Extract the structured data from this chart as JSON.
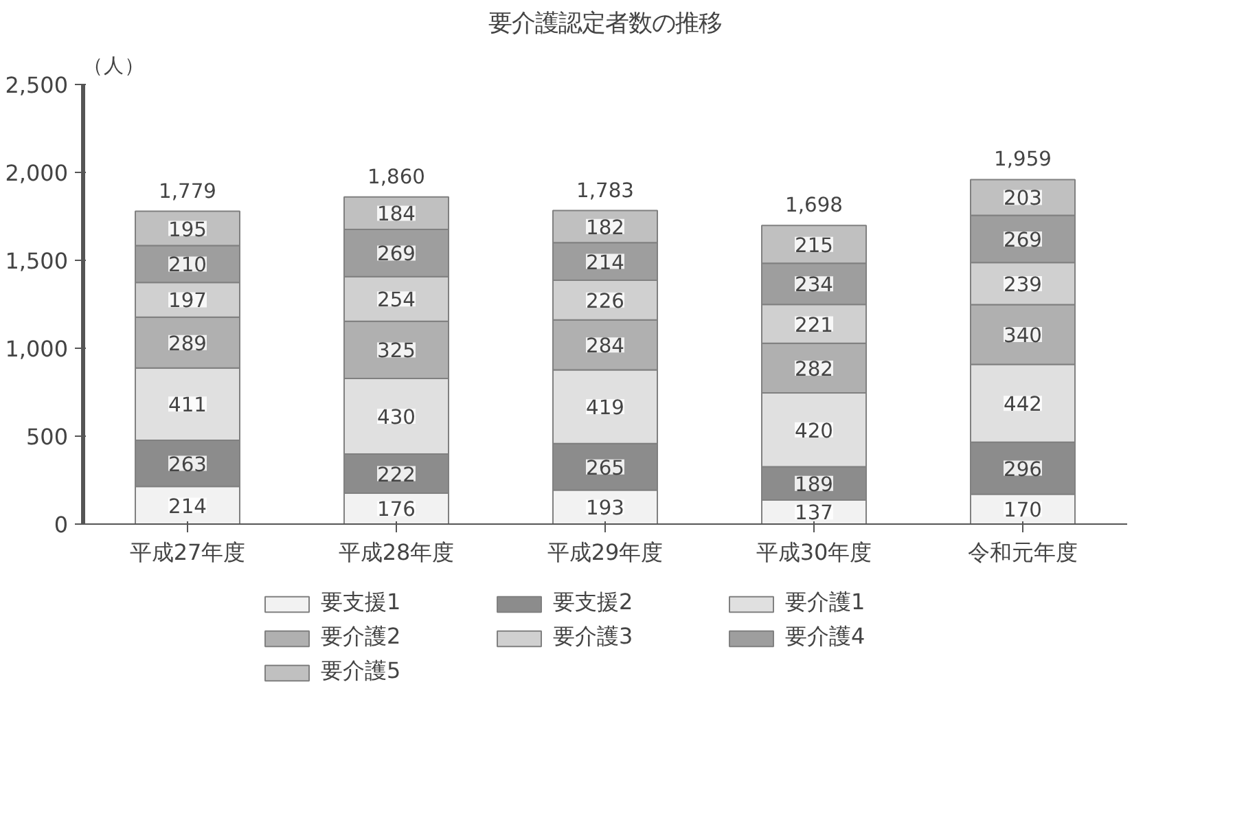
{
  "chart_data": {
    "type": "bar",
    "title": "要介護認定者数の推移",
    "ylabel": "（人）",
    "stacked": true,
    "categories": [
      "平成27年度",
      "平成28年度",
      "平成29年度",
      "平成30年度",
      "令和元年度"
    ],
    "series": [
      {
        "name": "要支援1",
        "color": "#f2f2f2",
        "values": [
          214,
          176,
          193,
          137,
          170
        ]
      },
      {
        "name": "要支援2",
        "color": "#8c8c8c",
        "values": [
          263,
          222,
          265,
          189,
          296
        ]
      },
      {
        "name": "要介護1",
        "color": "#e0e0e0",
        "values": [
          411,
          430,
          419,
          420,
          442
        ]
      },
      {
        "name": "要介護2",
        "color": "#b0b0b0",
        "values": [
          289,
          325,
          284,
          282,
          340
        ]
      },
      {
        "name": "要介護3",
        "color": "#d0d0d0",
        "values": [
          197,
          254,
          226,
          221,
          239
        ]
      },
      {
        "name": "要介護4",
        "color": "#9e9e9e",
        "values": [
          210,
          269,
          214,
          234,
          269
        ]
      },
      {
        "name": "要介護5",
        "color": "#c0c0c0",
        "values": [
          195,
          184,
          182,
          215,
          203
        ]
      }
    ],
    "ylim": [
      0,
      2500
    ],
    "yticks": [
      0,
      {
        "value": 500,
        "label": "500"
      },
      {
        "value": 1000,
        "label": "1,000"
      },
      {
        "value": 1500,
        "label": "1,500"
      },
      {
        "value": 2000,
        "label": "2,000"
      },
      {
        "value": 2500,
        "label": "2,500"
      }
    ],
    "data_labels": true,
    "totals": [
      "1,779",
      "1,860",
      "1,783",
      "1,698",
      "1,959"
    ],
    "grid": false,
    "legend": "bottom"
  }
}
